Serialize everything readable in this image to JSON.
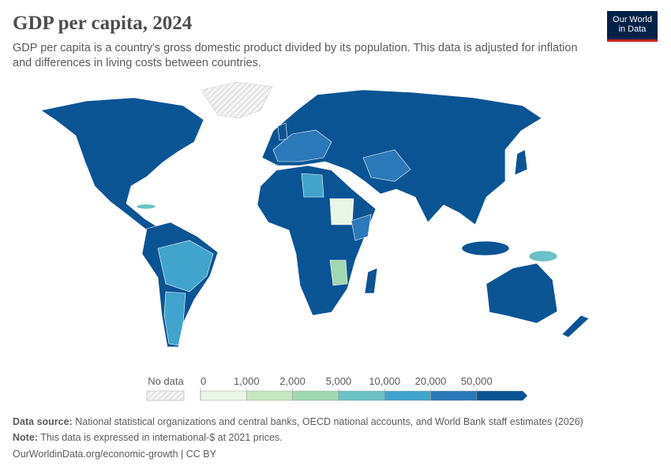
{
  "header": {
    "title": "GDP per capita, 2024",
    "subtitle": "GDP per capita is a country's gross domestic product divided by its population. This data is adjusted for inflation and differences in living costs between countries."
  },
  "logo": {
    "line1": "Our World",
    "line2": "in Data"
  },
  "legend": {
    "no_data": "No data",
    "ticks": [
      0,
      {
        "value": 1000,
        "label": "1,000"
      },
      {
        "value": 2000,
        "label": "2,000"
      },
      {
        "value": 5000,
        "label": "5,000"
      },
      {
        "value": 10000,
        "label": "10,000"
      },
      {
        "value": 20000,
        "label": "20,000"
      },
      {
        "value": 50000,
        "label": "50,000"
      }
    ],
    "colors": [
      "#e9f5e5",
      "#c6e6c1",
      "#a0d8b1",
      "#6cc2c5",
      "#41a4cc",
      "#2b79b8",
      "#0b5494"
    ]
  },
  "footer": {
    "source_label": "Data source:",
    "source": "National statistical organizations and central banks, OECD national accounts, and World Bank staff estimates (2026)",
    "note_label": "Note:",
    "note": "This data is expressed in international-$ at 2021 prices.",
    "url": "OurWorldinData.org/economic-growth | CC BY"
  }
}
